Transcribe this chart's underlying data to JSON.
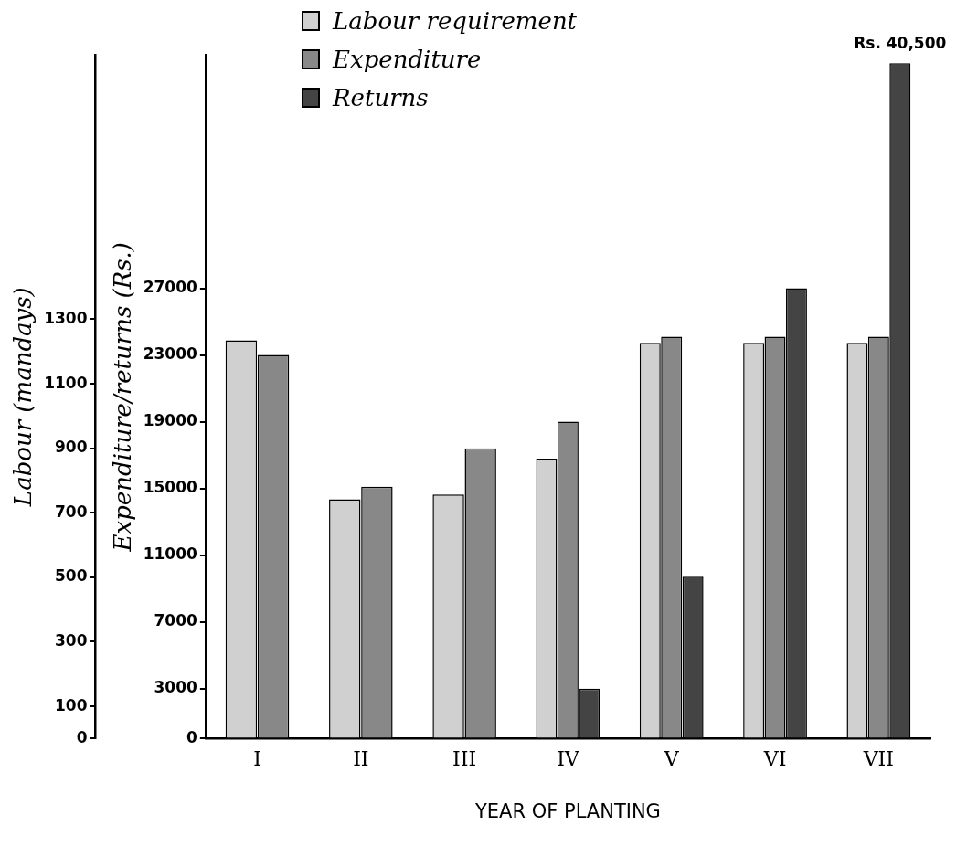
{
  "chart_data": {
    "type": "bar",
    "xlabel": "YEAR OF PLANTING",
    "ylabel": "Labour (mandays)",
    "y2label": "Expenditure/returns (Rs.)",
    "categories": [
      "I",
      "II",
      "III",
      "IV",
      "V",
      "VI",
      "VII"
    ],
    "series": [
      {
        "name": "Labour requirement",
        "color": "#d0d0d0",
        "values": [
          1235,
          742,
          757,
          868,
          1227,
          1227,
          1227
        ]
      },
      {
        "name": "Expenditure",
        "color": "#888888",
        "axis": "y2",
        "values": [
          23000,
          15100,
          17400,
          19000,
          24100,
          24100,
          24100
        ]
      },
      {
        "name": "Returns",
        "color": "#444444",
        "axis": "y2",
        "values": [
          null,
          null,
          null,
          3000,
          9700,
          27000,
          40500
        ],
        "value_labels": [
          null,
          null,
          null,
          null,
          null,
          null,
          "Rs. 40,500"
        ]
      }
    ],
    "ylim": [
      0,
      2120
    ],
    "yticks": [
      0,
      100,
      300,
      500,
      700,
      900,
      1100,
      1300
    ],
    "y2lim": [
      0,
      41000
    ],
    "y2ticks": [
      0,
      3000,
      7000,
      11000,
      15000,
      19000,
      23000,
      27000
    ],
    "grid": false,
    "legend": "top"
  }
}
